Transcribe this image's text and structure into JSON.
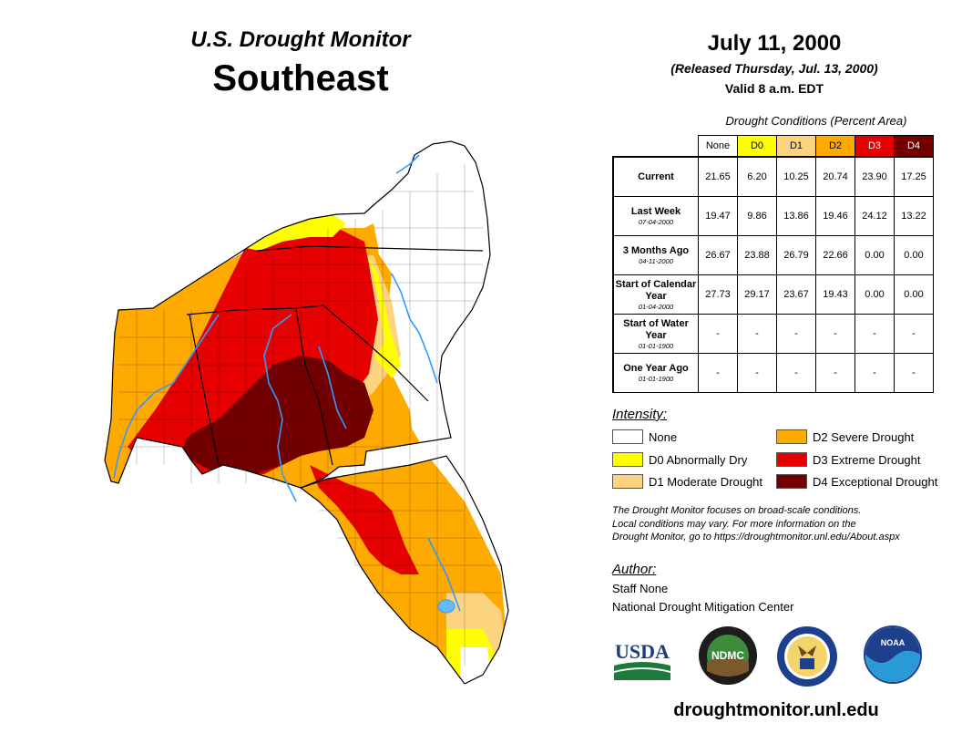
{
  "header": {
    "monitor_title": "U.S. Drought Monitor",
    "region": "Southeast",
    "date": "July 11, 2000",
    "released": "(Released Thursday, Jul. 13, 2000)",
    "valid": "Valid 8 a.m. EDT"
  },
  "table": {
    "caption": "Drought Conditions (Percent Area)",
    "columns": [
      {
        "label": "None",
        "color": "#ffffff",
        "text_color": "#000000"
      },
      {
        "label": "D0",
        "color": "#ffff00",
        "text_color": "#000000"
      },
      {
        "label": "D1",
        "color": "#fcd37f",
        "text_color": "#000000"
      },
      {
        "label": "D2",
        "color": "#ffaa00",
        "text_color": "#000000"
      },
      {
        "label": "D3",
        "color": "#e60000",
        "text_color": "#ffffff"
      },
      {
        "label": "D4",
        "color": "#730000",
        "text_color": "#ffffff"
      }
    ],
    "rows": [
      {
        "label": "Current",
        "date": "",
        "values": [
          "21.65",
          "6.20",
          "10.25",
          "20.74",
          "23.90",
          "17.25"
        ]
      },
      {
        "label": "Last Week",
        "date": "07-04-2000",
        "values": [
          "19.47",
          "9.86",
          "13.86",
          "19.46",
          "24.12",
          "13.22"
        ]
      },
      {
        "label": "3 Months Ago",
        "date": "04-11-2000",
        "values": [
          "26.67",
          "23.88",
          "26.79",
          "22.66",
          "0.00",
          "0.00"
        ]
      },
      {
        "label": "Start of Calendar Year",
        "date": "01-04-2000",
        "values": [
          "27.73",
          "29.17",
          "23.67",
          "19.43",
          "0.00",
          "0.00"
        ]
      },
      {
        "label": "Start of Water Year",
        "date": "01-01-1900",
        "values": [
          "-",
          "-",
          "-",
          "-",
          "-",
          "-"
        ]
      },
      {
        "label": "One Year Ago",
        "date": "01-01-1900",
        "values": [
          "-",
          "-",
          "-",
          "-",
          "-",
          "-"
        ]
      }
    ]
  },
  "legend": {
    "title": "Intensity:",
    "items": [
      {
        "label": "None",
        "color": "#ffffff"
      },
      {
        "label": "D0 Abnormally Dry",
        "color": "#ffff00"
      },
      {
        "label": "D1 Moderate Drought",
        "color": "#fcd37f"
      },
      {
        "label": "D2 Severe Drought",
        "color": "#ffaa00"
      },
      {
        "label": "D3 Extreme Drought",
        "color": "#e60000"
      },
      {
        "label": "D4 Exceptional Drought",
        "color": "#730000"
      }
    ]
  },
  "note": {
    "line1": "The Drought Monitor focuses on broad-scale conditions.",
    "line2": "Local conditions may vary. For more information on the",
    "line3": "Drought Monitor, go to https://droughtmonitor.unl.edu/About.aspx"
  },
  "author": {
    "title": "Author:",
    "name": "Staff None",
    "org": "National Drought Mitigation Center"
  },
  "logos": {
    "usda": "USDA",
    "ndmc": "NDMC",
    "noaa": "NOAA"
  },
  "website": "droughtmonitor.unl.edu"
}
